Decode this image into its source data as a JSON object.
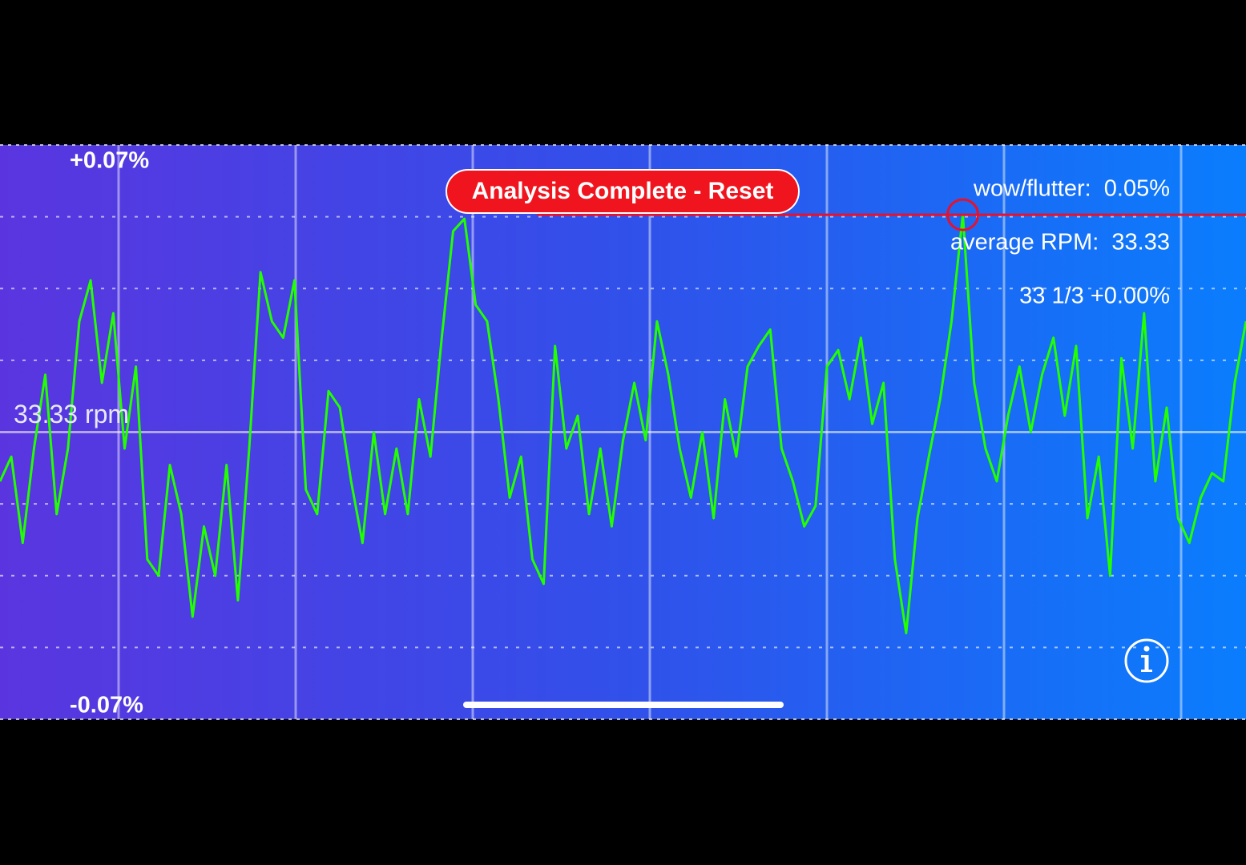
{
  "chart_data": {
    "type": "line",
    "color": "#22ff00",
    "ylim": [
      -0.07,
      0.07
    ],
    "yticks": [
      {
        "value": 0.07,
        "label": "+0.07%"
      },
      {
        "value": 0,
        "label": "33.33 rpm"
      },
      {
        "value": -0.07,
        "label": "-0.07%"
      }
    ],
    "values": [
      -0.012,
      -0.006,
      -0.027,
      -0.004,
      0.014,
      -0.02,
      -0.004,
      0.027,
      0.037,
      0.012,
      0.029,
      -0.004,
      0.016,
      -0.031,
      -0.035,
      -0.008,
      -0.02,
      -0.045,
      -0.023,
      -0.035,
      -0.008,
      -0.041,
      -0.004,
      0.039,
      0.027,
      0.023,
      0.037,
      -0.014,
      -0.02,
      0.01,
      0.006,
      -0.012,
      -0.027,
      0,
      -0.02,
      -0.004,
      -0.02,
      0.008,
      -0.006,
      0.023,
      0.049,
      0.052,
      0.031,
      0.027,
      0.008,
      -0.016,
      -0.006,
      -0.031,
      -0.037,
      0.021,
      -0.004,
      0.004,
      -0.02,
      -0.004,
      -0.023,
      -0.002,
      0.012,
      -0.002,
      0.027,
      0.014,
      -0.004,
      -0.016,
      0,
      -0.021,
      0.008,
      -0.006,
      0.016,
      0.021,
      0.025,
      -0.004,
      -0.012,
      -0.023,
      -0.018,
      0.016,
      0.02,
      0.008,
      0.023,
      0.002,
      0.012,
      -0.031,
      -0.049,
      -0.021,
      -0.006,
      0.008,
      0.027,
      0.053,
      0.012,
      -0.004,
      -0.012,
      0.004,
      0.016,
      0,
      0.014,
      0.023,
      0.004,
      0.021,
      -0.021,
      -0.006,
      -0.035,
      0.018,
      -0.004,
      0.029,
      -0.012,
      0.006,
      -0.021,
      -0.027,
      -0.016,
      -0.01,
      -0.012,
      0.012,
      0.027
    ]
  },
  "overlay": {
    "button": "Analysis Complete - Reset",
    "stats": [
      "wow/flutter:  0.05%",
      "average RPM:  33.33",
      "33 1/3 +0.00%"
    ]
  }
}
